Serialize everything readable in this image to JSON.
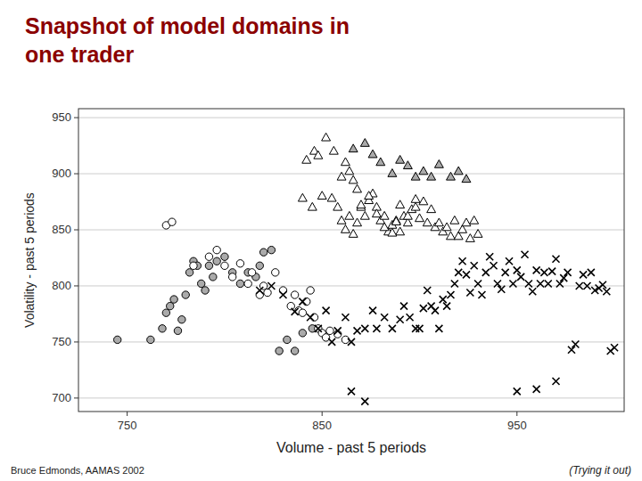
{
  "chart_data": {
    "type": "scatter",
    "title": [
      "Snapshot of model domains in",
      "one trader"
    ],
    "x_label": "Volume - past 5 periods",
    "y_label": "Volatility - past 5 periods",
    "annotations": [
      "Bruce Edmonds, AAMAS 2002",
      "(Trying it out)"
    ],
    "xlim": [
      725,
      1005
    ],
    "ylim": [
      688,
      958
    ],
    "xticks": [
      750,
      850,
      950
    ],
    "yticks": [
      700,
      750,
      800,
      850,
      900,
      950
    ],
    "grid": "y",
    "series": [
      {
        "marker": "circle",
        "color": "#aaaaaa",
        "x": [
          745,
          762,
          768,
          770,
          772,
          774,
          776,
          778,
          780,
          782,
          784,
          786,
          788,
          790,
          792,
          794,
          796,
          800,
          804,
          808,
          812,
          816,
          818,
          820,
          824,
          828,
          832,
          836,
          840,
          845
        ],
        "values": [
          752,
          752,
          762,
          776,
          782,
          788,
          760,
          770,
          792,
          812,
          822,
          818,
          802,
          796,
          818,
          808,
          822,
          826,
          812,
          802,
          812,
          808,
          818,
          830,
          832,
          742,
          752,
          742,
          758,
          762
        ]
      },
      {
        "marker": "circle",
        "color": "#ffffff",
        "x": [
          770,
          773,
          784,
          792,
          796,
          800,
          804,
          808,
          812,
          814,
          818,
          820,
          822,
          826,
          830,
          834,
          836,
          838,
          840,
          842,
          844,
          846,
          848,
          850,
          852,
          854,
          858,
          862
        ],
        "values": [
          854,
          857,
          818,
          826,
          832,
          818,
          808,
          820,
          802,
          812,
          792,
          800,
          794,
          812,
          796,
          782,
          792,
          778,
          776,
          786,
          796,
          772,
          762,
          758,
          754,
          760,
          757,
          752
        ]
      },
      {
        "marker": "triangle",
        "color": "#ffffff",
        "x": [
          840,
          845,
          850,
          855,
          858,
          860,
          862,
          864,
          866,
          868,
          870,
          872,
          874,
          876,
          878,
          880,
          882,
          884,
          886,
          888,
          890,
          892,
          894,
          896,
          898,
          900,
          902,
          904,
          906,
          908,
          910,
          912,
          914,
          916,
          918,
          920,
          922,
          924,
          926,
          928,
          930
        ],
        "values": [
          878,
          870,
          880,
          878,
          870,
          858,
          850,
          862,
          846,
          856,
          870,
          862,
          876,
          882,
          870,
          858,
          862,
          848,
          854,
          858,
          848,
          862,
          856,
          868,
          870,
          860,
          875,
          856,
          868,
          852,
          856,
          848,
          852,
          844,
          858,
          844,
          850,
          856,
          842,
          858,
          846
        ]
      },
      {
        "marker": "triangle",
        "color": "#ffffff",
        "x": [
          842,
          846,
          848,
          852,
          856,
          860,
          862,
          864,
          866,
          868,
          870,
          874,
          878,
          882,
          886,
          888,
          890,
          894,
          898
        ],
        "values": [
          912,
          920,
          916,
          932,
          920,
          897,
          910,
          902,
          894,
          886,
          872,
          880,
          864,
          852,
          847,
          857,
          872,
          862,
          877
        ]
      },
      {
        "marker": "triangle",
        "color": "#aaaaaa",
        "x": [
          866,
          872,
          876,
          880,
          886,
          890,
          894,
          898,
          902,
          906,
          910,
          916,
          920,
          924
        ],
        "values": [
          922,
          927,
          917,
          910,
          900,
          912,
          907,
          897,
          902,
          897,
          908,
          897,
          902,
          895
        ]
      },
      {
        "marker": "x",
        "color": "#000000",
        "x": [
          818,
          824,
          830,
          836,
          840,
          844,
          848,
          852,
          855,
          858,
          862,
          865,
          868,
          872,
          876,
          878,
          882,
          886,
          890,
          892,
          895,
          898,
          900,
          902,
          904,
          906,
          908,
          910,
          912,
          914,
          916,
          918,
          920,
          922,
          924,
          926,
          928,
          930,
          932,
          934,
          936,
          938,
          940,
          942,
          944,
          946,
          948,
          950,
          952,
          954,
          956,
          958,
          960,
          962,
          964,
          966,
          968,
          970,
          972,
          974,
          976,
          978,
          980,
          982,
          984,
          986,
          988,
          990,
          992,
          994,
          996,
          998,
          1000
        ],
        "values": [
          796,
          800,
          792,
          777,
          786,
          772,
          762,
          778,
          750,
          760,
          772,
          750,
          760,
          762,
          778,
          762,
          772,
          762,
          770,
          782,
          772,
          762,
          762,
          780,
          796,
          782,
          778,
          762,
          788,
          782,
          792,
          802,
          812,
          822,
          810,
          794,
          818,
          802,
          792,
          812,
          826,
          818,
          802,
          797,
          812,
          822,
          802,
          814,
          808,
          828,
          802,
          795,
          814,
          802,
          812,
          802,
          813,
          824,
          802,
          807,
          812,
          743,
          748,
          800,
          810,
          800,
          812,
          796,
          798,
          801,
          795,
          742,
          745
        ]
      },
      {
        "marker": "x",
        "color": "#000000",
        "x": [
          865,
          872,
          950,
          960,
          970
        ],
        "values": [
          706,
          697,
          706,
          708,
          715
        ]
      }
    ]
  }
}
